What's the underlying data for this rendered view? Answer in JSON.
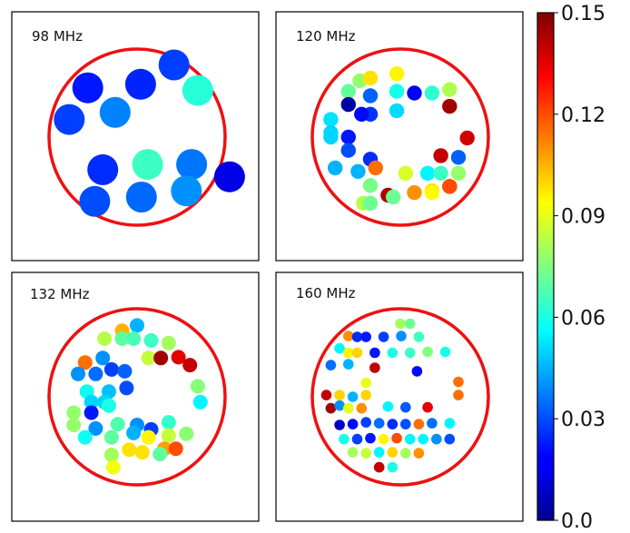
{
  "chart_data": [
    {
      "type": "scatter",
      "title": "98 MHz",
      "x": [
        -0.56,
        -0.77,
        -0.25,
        0.04,
        0.42,
        0.69,
        -0.39,
        0.12,
        0.62,
        -0.48,
        0.05,
        0.56,
        1.05
      ],
      "y": [
        0.56,
        0.2,
        0.28,
        0.6,
        0.82,
        0.53,
        -0.37,
        -0.31,
        -0.31,
        -0.73,
        -0.68,
        -0.61,
        -0.45
      ],
      "values": [
        0.022,
        0.028,
        0.038,
        0.024,
        0.028,
        0.062,
        0.025,
        0.065,
        0.036,
        0.03,
        0.034,
        0.04,
        0.015
      ],
      "clim": [
        0,
        0.15
      ]
    },
    {
      "type": "scatter",
      "title": "120 MHz",
      "x": [
        -0.46,
        -0.34,
        -0.04,
        -0.59,
        -0.34,
        -0.04,
        0.16,
        0.36,
        0.56,
        -0.59,
        -0.34,
        0.56,
        -0.79,
        -0.44,
        -0.04,
        -0.79,
        -0.59,
        -0.79,
        -0.59,
        -0.34,
        0.46,
        0.66,
        0.76,
        -0.74,
        -0.48,
        -0.28,
        0.06,
        0.31,
        0.46,
        0.66,
        -0.34,
        -0.14,
        0.36,
        0.56,
        -0.42,
        -0.08,
        0.16,
        0.36,
        0.56,
        -0.34
      ],
      "y": [
        0.64,
        0.67,
        0.72,
        0.52,
        0.47,
        0.52,
        0.5,
        0.5,
        0.54,
        0.37,
        0.26,
        0.35,
        0.2,
        0.26,
        0.3,
        0.05,
        0.0,
        0.0,
        -0.15,
        -0.25,
        -0.21,
        -0.23,
        -0.01,
        -0.35,
        -0.39,
        -0.35,
        -0.41,
        -0.41,
        -0.41,
        -0.41,
        -0.55,
        -0.66,
        -0.61,
        -0.56,
        -0.75,
        -0.68,
        -0.63,
        -0.63,
        -0.56,
        -0.75
      ],
      "values": [
        0.078,
        0.098,
        0.095,
        0.071,
        0.033,
        0.059,
        0.018,
        0.063,
        0.082,
        0.005,
        0.026,
        0.145,
        0.052,
        0.02,
        0.051,
        0.05,
        0.022,
        0.05,
        0.03,
        0.025,
        0.14,
        0.033,
        0.138,
        0.045,
        0.045,
        0.115,
        0.088,
        0.055,
        0.065,
        0.078,
        0.074,
        0.143,
        0.099,
        0.125,
        0.083,
        0.072,
        0.11,
        0.094,
        0.12,
        0.072
      ],
      "clim": [
        0,
        0.15
      ]
    },
    {
      "type": "scatter",
      "title": "132 MHz",
      "x": [
        -0.17,
        0.0,
        -0.37,
        -0.17,
        -0.04,
        0.16,
        0.36,
        -0.59,
        -0.39,
        0.13,
        0.27,
        0.47,
        0.6,
        -0.67,
        -0.47,
        -0.29,
        -0.14,
        0.69,
        -0.57,
        -0.32,
        -0.12,
        -0.52,
        -0.37,
        0.72,
        -0.72,
        -0.52,
        -0.32,
        0.36,
        -0.72,
        -0.47,
        -0.22,
        0.0,
        0.16,
        0.36,
        0.56,
        -0.59,
        -0.29,
        -0.04,
        0.13,
        0.31,
        0.44,
        -0.29,
        -0.09,
        0.06,
        0.26,
        -0.27
      ],
      "y": [
        0.75,
        0.81,
        0.66,
        0.66,
        0.66,
        0.64,
        0.61,
        0.39,
        0.44,
        0.44,
        0.44,
        0.45,
        0.36,
        0.26,
        0.26,
        0.31,
        0.29,
        0.12,
        0.06,
        0.06,
        0.1,
        -0.06,
        -0.06,
        -0.06,
        -0.18,
        -0.18,
        -0.1,
        -0.29,
        -0.32,
        -0.36,
        -0.31,
        -0.32,
        -0.37,
        -0.44,
        -0.42,
        -0.46,
        -0.46,
        -0.41,
        -0.46,
        -0.59,
        -0.59,
        -0.66,
        -0.6,
        -0.63,
        -0.65,
        -0.8
      ],
      "values": [
        0.105,
        0.045,
        0.083,
        0.07,
        0.067,
        0.065,
        0.08,
        0.115,
        0.04,
        0.085,
        0.145,
        0.135,
        0.14,
        0.04,
        0.035,
        0.028,
        0.033,
        0.076,
        0.058,
        0.047,
        0.03,
        0.05,
        0.05,
        0.055,
        0.078,
        0.022,
        0.06,
        0.064,
        0.078,
        0.04,
        0.068,
        0.04,
        0.028,
        0.085,
        0.077,
        0.058,
        0.07,
        0.045,
        0.095,
        0.108,
        0.12,
        0.08,
        0.098,
        0.098,
        0.07,
        0.092
      ],
      "clim": [
        0,
        0.15
      ]
    },
    {
      "type": "scatter",
      "title": "160 MHz",
      "x": [
        0.0,
        0.11,
        -0.59,
        -0.49,
        -0.39,
        -0.19,
        0.01,
        0.21,
        -0.69,
        -0.59,
        -0.49,
        -0.29,
        -0.09,
        0.11,
        0.31,
        0.51,
        -0.79,
        -0.59,
        -0.29,
        0.19,
        -0.39,
        0.66,
        -0.84,
        -0.69,
        -0.54,
        -0.39,
        0.66,
        -0.79,
        -0.69,
        -0.59,
        -0.44,
        -0.14,
        0.06,
        0.31,
        -0.69,
        -0.54,
        -0.39,
        -0.24,
        -0.09,
        0.06,
        0.21,
        0.36,
        0.56,
        -0.64,
        -0.49,
        -0.34,
        -0.19,
        -0.04,
        0.11,
        0.26,
        0.41,
        0.56,
        -0.54,
        -0.39,
        -0.24,
        -0.09,
        0.06,
        0.21,
        -0.24,
        -0.09
      ],
      "y": [
        0.83,
        0.83,
        0.69,
        0.68,
        0.68,
        0.68,
        0.69,
        0.68,
        0.55,
        0.5,
        0.5,
        0.5,
        0.5,
        0.5,
        0.51,
        0.51,
        0.36,
        0.37,
        0.33,
        0.29,
        0.16,
        0.17,
        0.02,
        0.02,
        0.0,
        0.02,
        0.02,
        -0.13,
        -0.1,
        -0.13,
        -0.13,
        -0.11,
        -0.12,
        -0.12,
        -0.32,
        -0.31,
        -0.29,
        -0.3,
        -0.31,
        -0.31,
        -0.31,
        -0.3,
        -0.3,
        -0.48,
        -0.48,
        -0.47,
        -0.48,
        -0.47,
        -0.48,
        -0.48,
        -0.48,
        -0.48,
        -0.63,
        -0.64,
        -0.63,
        -0.63,
        -0.64,
        -0.64,
        -0.8,
        -0.8
      ],
      "values": [
        0.08,
        0.072,
        0.11,
        0.025,
        0.022,
        0.028,
        0.04,
        0.065,
        0.055,
        0.095,
        0.1,
        0.022,
        0.06,
        0.065,
        0.075,
        0.06,
        0.035,
        0.045,
        0.14,
        0.02,
        0.09,
        0.115,
        0.14,
        0.1,
        0.045,
        0.1,
        0.115,
        0.145,
        0.04,
        0.09,
        0.11,
        0.055,
        0.032,
        0.135,
        0.01,
        0.02,
        0.028,
        0.035,
        0.025,
        0.03,
        0.115,
        0.035,
        0.055,
        0.06,
        0.028,
        0.022,
        0.095,
        0.12,
        0.055,
        0.055,
        0.04,
        0.03,
        0.08,
        0.085,
        0.055,
        0.1,
        0.08,
        0.11,
        0.14,
        0.06
      ],
      "clim": [
        0,
        0.15
      ]
    }
  ],
  "colorbar": {
    "colormap": "jet",
    "min": 0.0,
    "max": 0.15,
    "ticks": [
      0.0,
      0.03,
      0.06,
      0.09,
      0.12,
      0.15
    ],
    "tick_labels": [
      "0.0",
      "0.03",
      "0.06",
      "0.09",
      "0.12",
      "0.15"
    ]
  },
  "ring_color": "#ee1111"
}
